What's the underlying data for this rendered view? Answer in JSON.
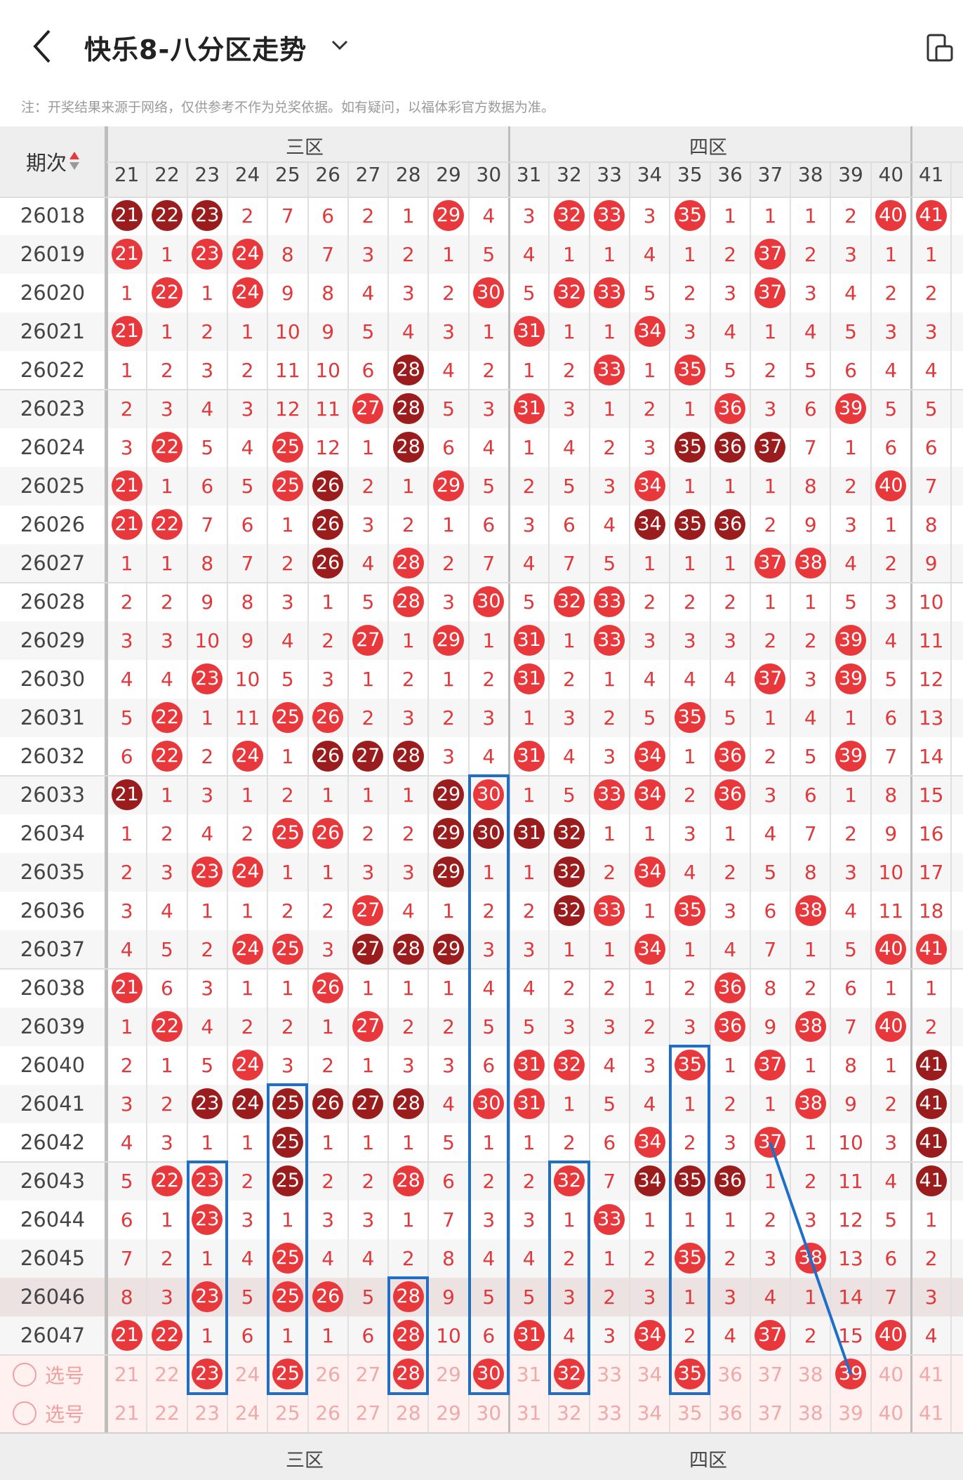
{
  "header": {
    "title": "快乐8-八分区走势"
  },
  "note": "注：开奖结果来源于网络，仅供参考不作为兑奖依据。如有疑问，以福体彩官方数据为准。",
  "table": {
    "period_header": "期次",
    "zones": [
      "三区",
      "四区"
    ],
    "columns": [
      "21",
      "22",
      "23",
      "24",
      "25",
      "26",
      "27",
      "28",
      "29",
      "30",
      "31",
      "32",
      "33",
      "34",
      "35",
      "36",
      "37",
      "38",
      "39",
      "40",
      "41"
    ],
    "pick_label": "选号",
    "rows": [
      {
        "p": "26018",
        "v": [
          "21*d",
          "22*d",
          "23*d",
          "2",
          "7",
          "6",
          "2",
          "1",
          "29*r",
          "4",
          "3",
          "32*r",
          "33*r",
          "3",
          "35*r",
          "1",
          "1",
          "1",
          "2",
          "40*r",
          "41*r"
        ]
      },
      {
        "p": "26019",
        "v": [
          "21*r",
          "1",
          "23*r",
          "24*r",
          "8",
          "7",
          "3",
          "2",
          "1",
          "5",
          "4",
          "1",
          "1",
          "4",
          "1",
          "2",
          "37*r",
          "2",
          "3",
          "1",
          "1"
        ]
      },
      {
        "p": "26020",
        "v": [
          "1",
          "22*r",
          "1",
          "24*r",
          "9",
          "8",
          "4",
          "3",
          "2",
          "30*r",
          "5",
          "32*r",
          "33*r",
          "5",
          "2",
          "3",
          "37*r",
          "3",
          "4",
          "2",
          "2"
        ]
      },
      {
        "p": "26021",
        "v": [
          "21*r",
          "1",
          "2",
          "1",
          "10",
          "9",
          "5",
          "4",
          "3",
          "1",
          "31*r",
          "1",
          "1",
          "34*r",
          "3",
          "4",
          "1",
          "4",
          "5",
          "3",
          "3"
        ]
      },
      {
        "p": "26022",
        "v": [
          "1",
          "2",
          "3",
          "2",
          "11",
          "10",
          "6",
          "28*d",
          "4",
          "2",
          "1",
          "2",
          "33*r",
          "1",
          "35*r",
          "5",
          "2",
          "5",
          "6",
          "4",
          "4"
        ]
      },
      {
        "p": "26023",
        "v": [
          "2",
          "3",
          "4",
          "3",
          "12",
          "11",
          "27*r",
          "28*d",
          "5",
          "3",
          "31*r",
          "3",
          "1",
          "2",
          "1",
          "36*r",
          "3",
          "6",
          "39*r",
          "5",
          "5"
        ]
      },
      {
        "p": "26024",
        "v": [
          "3",
          "22*r",
          "5",
          "4",
          "25*r",
          "12",
          "1",
          "28*d",
          "6",
          "4",
          "1",
          "4",
          "2",
          "3",
          "35*d",
          "36*d",
          "37*d",
          "7",
          "1",
          "6",
          "6"
        ]
      },
      {
        "p": "26025",
        "v": [
          "21*r",
          "1",
          "6",
          "5",
          "25*r",
          "26*d",
          "2",
          "1",
          "29*r",
          "5",
          "2",
          "5",
          "3",
          "34*r",
          "1",
          "1",
          "1",
          "8",
          "2",
          "40*r",
          "7"
        ]
      },
      {
        "p": "26026",
        "v": [
          "21*r",
          "22*r",
          "7",
          "6",
          "1",
          "26*d",
          "3",
          "2",
          "1",
          "6",
          "3",
          "6",
          "4",
          "34*d",
          "35*d",
          "36*d",
          "2",
          "9",
          "3",
          "1",
          "8"
        ]
      },
      {
        "p": "26027",
        "v": [
          "1",
          "1",
          "8",
          "7",
          "2",
          "26*d",
          "4",
          "28*r",
          "2",
          "7",
          "4",
          "7",
          "5",
          "1",
          "1",
          "1",
          "37*r",
          "38*r",
          "4",
          "2",
          "9"
        ]
      },
      {
        "p": "26028",
        "v": [
          "2",
          "2",
          "9",
          "8",
          "3",
          "1",
          "5",
          "28*r",
          "3",
          "30*r",
          "5",
          "32*r",
          "33*r",
          "2",
          "2",
          "2",
          "1",
          "1",
          "5",
          "3",
          "10"
        ]
      },
      {
        "p": "26029",
        "v": [
          "3",
          "3",
          "10",
          "9",
          "4",
          "2",
          "27*r",
          "1",
          "29*r",
          "1",
          "31*r",
          "1",
          "33*r",
          "3",
          "3",
          "3",
          "2",
          "2",
          "39*r",
          "4",
          "11"
        ]
      },
      {
        "p": "26030",
        "v": [
          "4",
          "4",
          "23*r",
          "10",
          "5",
          "3",
          "1",
          "2",
          "1",
          "2",
          "31*r",
          "2",
          "1",
          "4",
          "4",
          "4",
          "37*r",
          "3",
          "39*r",
          "5",
          "12"
        ]
      },
      {
        "p": "26031",
        "v": [
          "5",
          "22*r",
          "1",
          "11",
          "25*r",
          "26*r",
          "2",
          "3",
          "2",
          "3",
          "1",
          "3",
          "2",
          "5",
          "35*r",
          "5",
          "1",
          "4",
          "1",
          "6",
          "13"
        ]
      },
      {
        "p": "26032",
        "v": [
          "6",
          "22*r",
          "2",
          "24*r",
          "1",
          "26*d",
          "27*d",
          "28*d",
          "3",
          "4",
          "31*r",
          "4",
          "3",
          "34*r",
          "1",
          "36*r",
          "2",
          "5",
          "39*r",
          "7",
          "14"
        ]
      },
      {
        "p": "26033",
        "v": [
          "21*d",
          "1",
          "3",
          "1",
          "2",
          "1",
          "1",
          "1",
          "29*d",
          "30*r",
          "1",
          "5",
          "33*r",
          "34*r",
          "2",
          "36*r",
          "3",
          "6",
          "1",
          "8",
          "15"
        ]
      },
      {
        "p": "26034",
        "v": [
          "1",
          "2",
          "4",
          "2",
          "25*r",
          "26*r",
          "2",
          "2",
          "29*d",
          "30*d",
          "31*d",
          "32*d",
          "1",
          "1",
          "3",
          "1",
          "4",
          "7",
          "2",
          "9",
          "16"
        ]
      },
      {
        "p": "26035",
        "v": [
          "2",
          "3",
          "23*r",
          "24*r",
          "1",
          "1",
          "3",
          "3",
          "29*d",
          "1",
          "1",
          "32*d",
          "2",
          "34*r",
          "4",
          "2",
          "5",
          "8",
          "3",
          "10",
          "17"
        ]
      },
      {
        "p": "26036",
        "v": [
          "3",
          "4",
          "1",
          "1",
          "2",
          "2",
          "27*r",
          "4",
          "1",
          "2",
          "2",
          "32*d",
          "33*r",
          "1",
          "35*r",
          "3",
          "6",
          "38*r",
          "4",
          "11",
          "18"
        ]
      },
      {
        "p": "26037",
        "v": [
          "4",
          "5",
          "2",
          "24*r",
          "25*r",
          "3",
          "27*d",
          "28*d",
          "29*d",
          "3",
          "3",
          "1",
          "1",
          "34*r",
          "1",
          "4",
          "7",
          "1",
          "5",
          "40*r",
          "41*r"
        ]
      },
      {
        "p": "26038",
        "v": [
          "21*r",
          "6",
          "3",
          "1",
          "1",
          "26*r",
          "1",
          "1",
          "1",
          "4",
          "4",
          "2",
          "2",
          "1",
          "2",
          "36*r",
          "8",
          "2",
          "6",
          "1",
          "1"
        ]
      },
      {
        "p": "26039",
        "v": [
          "1",
          "22*r",
          "4",
          "2",
          "2",
          "1",
          "27*r",
          "2",
          "2",
          "5",
          "5",
          "3",
          "3",
          "2",
          "3",
          "36*r",
          "9",
          "38*r",
          "7",
          "40*r",
          "2"
        ]
      },
      {
        "p": "26040",
        "v": [
          "2",
          "1",
          "5",
          "24*r",
          "3",
          "2",
          "1",
          "3",
          "3",
          "6",
          "31*r",
          "32*r",
          "4",
          "3",
          "35*r",
          "1",
          "37*r",
          "1",
          "8",
          "1",
          "41*d"
        ]
      },
      {
        "p": "26041",
        "v": [
          "3",
          "2",
          "23*d",
          "24*d",
          "25*d",
          "26*d",
          "27*d",
          "28*d",
          "4",
          "30*r",
          "31*r",
          "1",
          "5",
          "4",
          "1",
          "2",
          "1",
          "38*r",
          "9",
          "2",
          "41*d"
        ]
      },
      {
        "p": "26042",
        "v": [
          "4",
          "3",
          "1",
          "1",
          "25*d",
          "1",
          "1",
          "1",
          "5",
          "1",
          "1",
          "2",
          "6",
          "34*r",
          "2",
          "3",
          "37*r",
          "1",
          "10",
          "3",
          "41*d"
        ]
      },
      {
        "p": "26043",
        "v": [
          "5",
          "22*r",
          "23*r",
          "2",
          "25*d",
          "2",
          "2",
          "28*r",
          "6",
          "2",
          "2",
          "32*r",
          "7",
          "34*d",
          "35*d",
          "36*d",
          "1",
          "2",
          "11",
          "4",
          "41*d"
        ]
      },
      {
        "p": "26044",
        "v": [
          "6",
          "1",
          "23*r",
          "3",
          "1",
          "3",
          "3",
          "1",
          "7",
          "3",
          "3",
          "1",
          "33*r",
          "1",
          "1",
          "1",
          "2",
          "3",
          "12",
          "5",
          "1"
        ]
      },
      {
        "p": "26045",
        "v": [
          "7",
          "2",
          "1",
          "4",
          "25*r",
          "4",
          "4",
          "2",
          "8",
          "4",
          "4",
          "2",
          "1",
          "2",
          "35*r",
          "2",
          "3",
          "38*r",
          "13",
          "6",
          "2"
        ]
      },
      {
        "p": "26046",
        "v": [
          "8",
          "3",
          "23*r",
          "5",
          "25*r",
          "26*r",
          "5",
          "28*r",
          "9",
          "5",
          "5",
          "3",
          "2",
          "3",
          "1",
          "3",
          "4",
          "1",
          "14",
          "7",
          "3"
        ]
      },
      {
        "p": "26047",
        "v": [
          "21*r",
          "22*r",
          "1",
          "6",
          "1",
          "1",
          "6",
          "28*r",
          "10",
          "6",
          "31*r",
          "4",
          "3",
          "34*r",
          "2",
          "4",
          "37*r",
          "2",
          "15",
          "40*r",
          "4"
        ]
      }
    ],
    "pick_rows": [
      {
        "v": [
          "21",
          "22",
          "23*r",
          "24",
          "25*r",
          "26",
          "27",
          "28*r",
          "29",
          "30*r",
          "31",
          "32*r",
          "33",
          "34",
          "35*r",
          "36",
          "37",
          "38",
          "39*r",
          "40",
          "41"
        ]
      },
      {
        "v": [
          "21",
          "22",
          "23",
          "24",
          "25",
          "26",
          "27",
          "28",
          "29",
          "30",
          "31",
          "32",
          "33",
          "34",
          "35",
          "36",
          "37",
          "38",
          "39",
          "40",
          "41"
        ]
      }
    ]
  }
}
